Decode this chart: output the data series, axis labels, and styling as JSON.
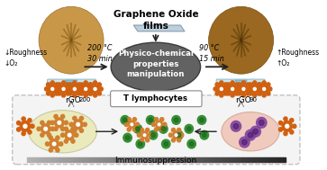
{
  "title": "Graphene Oxide\nfilms",
  "center_label": "Physico-chemical\nproperties\nmanipulation",
  "left_conditions": "200 °C\n30 min",
  "right_conditions": "90 °C\n15 min",
  "left_label": "rGO",
  "left_sub": "200",
  "right_label": "rGO",
  "right_sub": "90",
  "left_roughness": "↓Roughness\n↓O₂",
  "right_roughness": "↑Roughness\n↑O₂",
  "t_lymphocytes": "T lymphocytes",
  "immunosuppression": "Immunosuppression",
  "bg_color": "#ffffff",
  "center_ellipse_color": "#555555",
  "gear_color": "#d06010",
  "green_cell_color": "#2a8a2a",
  "orange_cell_color": "#d08030",
  "purple_cell_color": "#8040a0",
  "purple_inner_color": "#502070",
  "film_color": "#b0c8d8",
  "arrow_color": "#222222"
}
